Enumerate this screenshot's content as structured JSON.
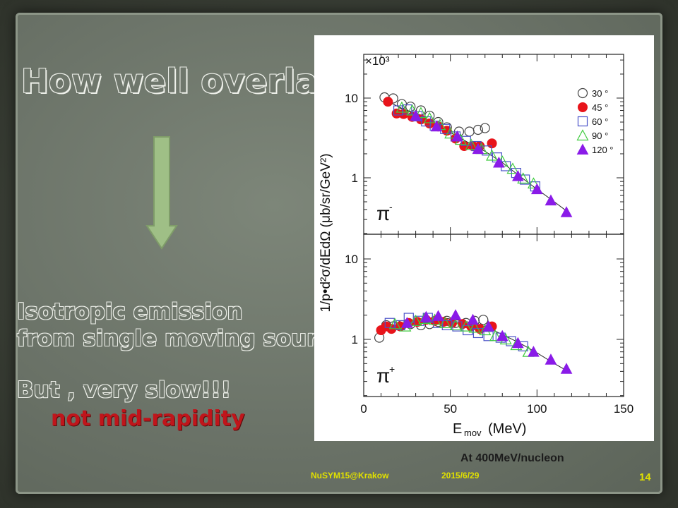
{
  "slide": {
    "title": "How well overlap?",
    "line1": "Isotropic emission",
    "line2": "from single moving source",
    "line3": "But , very slow!!!",
    "line4": "not mid-rapidity",
    "caption": "At 400MeV/nucleon",
    "footer_left": "NuSYM15@Krakow",
    "footer_date": "2015/6/29",
    "page_number": "14",
    "arrow_icon": "down-arrow-icon"
  },
  "colors": {
    "red_text": "#c0151b",
    "footer": "#e0e000",
    "arrow_fill": "#9fbf86",
    "series_30": "#444444",
    "series_45": "#e8141b",
    "series_60": "#4a52c8",
    "series_90": "#3ecb3e",
    "series_120": "#8a1be8"
  },
  "chart_data": {
    "type": "scatter",
    "y_multiplier": "×10³",
    "ylabel": "1/p•d²σ/dEdΩ (μb/sr/GeV²)",
    "xlabel_main": "E",
    "xlabel_sub": "mov",
    "xlabel_unit": "(MeV)",
    "xlim": [
      0,
      150
    ],
    "x_ticks": [
      "0",
      "50",
      "100",
      "150"
    ],
    "y_scale": "log",
    "legend": [
      "30 °",
      "45 °",
      "60 °",
      "90 °",
      "120 °"
    ],
    "legend_position": "top-right",
    "panels": [
      {
        "label": "π",
        "label_sup": "-",
        "ylim": [
          0.12,
          30
        ],
        "y_ticks": [
          {
            "v": 10,
            "t": "10"
          },
          {
            "v": 1,
            "t": "1"
          }
        ],
        "curve": [
          [
            12,
            9.5
          ],
          [
            20,
            7.8
          ],
          [
            30,
            6.2
          ],
          [
            40,
            4.9
          ],
          [
            50,
            3.7
          ],
          [
            60,
            2.8
          ],
          [
            70,
            2.15
          ],
          [
            80,
            1.55
          ],
          [
            90,
            1.05
          ],
          [
            100,
            0.72
          ],
          [
            110,
            0.5
          ],
          [
            118,
            0.37
          ]
        ],
        "series": [
          {
            "name": "30 °",
            "marker": "circle-open",
            "points": [
              [
                12,
                10.2
              ],
              [
                17,
                9.9
              ],
              [
                22,
                8.4
              ],
              [
                27,
                7.8
              ],
              [
                33,
                7.0
              ],
              [
                38,
                6.0
              ],
              [
                43,
                5.0
              ],
              [
                48,
                4.3
              ],
              [
                55,
                3.8
              ],
              [
                61,
                3.8
              ],
              [
                66,
                4.0
              ],
              [
                70,
                4.2
              ]
            ]
          },
          {
            "name": "45 °",
            "marker": "circle-filled",
            "points": [
              [
                14,
                9.0
              ],
              [
                19,
                6.4
              ],
              [
                23,
                6.3
              ],
              [
                28,
                5.8
              ],
              [
                33,
                5.4
              ],
              [
                38,
                4.8
              ],
              [
                43,
                4.4
              ],
              [
                48,
                3.9
              ],
              [
                53,
                3.1
              ],
              [
                58,
                2.5
              ],
              [
                63,
                2.5
              ],
              [
                67,
                2.5
              ],
              [
                74,
                2.7
              ]
            ]
          },
          {
            "name": "60 °",
            "marker": "square-open",
            "points": [
              [
                20,
                7.0
              ],
              [
                25,
                7.2
              ],
              [
                31,
                5.9
              ],
              [
                36,
                5.1
              ],
              [
                41,
                4.5
              ],
              [
                47,
                4.1
              ],
              [
                53,
                3.3
              ],
              [
                59,
                2.9
              ],
              [
                65,
                2.5
              ],
              [
                71,
                2.2
              ],
              [
                77,
                1.8
              ],
              [
                82,
                1.4
              ],
              [
                88,
                1.15
              ],
              [
                93,
                0.95
              ],
              [
                99,
                0.78
              ]
            ]
          },
          {
            "name": "90 °",
            "marker": "triangle-open",
            "points": [
              [
                22,
                7.6
              ],
              [
                28,
                7.0
              ],
              [
                33,
                6.5
              ],
              [
                38,
                5.6
              ],
              [
                44,
                4.6
              ],
              [
                50,
                3.6
              ],
              [
                56,
                3.0
              ],
              [
                62,
                2.6
              ],
              [
                68,
                2.3
              ],
              [
                74,
                1.9
              ],
              [
                80,
                1.6
              ],
              [
                86,
                1.3
              ],
              [
                92,
                0.98
              ],
              [
                98,
                0.85
              ]
            ]
          },
          {
            "name": "120 °",
            "marker": "triangle-filled",
            "points": [
              [
                30,
                6.0
              ],
              [
                42,
                4.4
              ],
              [
                54,
                3.3
              ],
              [
                66,
                2.3
              ],
              [
                78,
                1.55
              ],
              [
                89,
                1.05
              ],
              [
                100,
                0.72
              ],
              [
                108,
                0.52
              ],
              [
                117,
                0.37
              ]
            ]
          }
        ]
      },
      {
        "label": "π",
        "label_sup": "+",
        "ylim": [
          0.12,
          30
        ],
        "y_ticks": [
          {
            "v": 10,
            "t": "10"
          },
          {
            "v": 1,
            "t": "1"
          }
        ],
        "curve": [
          [
            10,
            1.25
          ],
          [
            20,
            1.55
          ],
          [
            30,
            1.78
          ],
          [
            40,
            1.85
          ],
          [
            50,
            1.8
          ],
          [
            60,
            1.65
          ],
          [
            70,
            1.45
          ],
          [
            80,
            1.15
          ],
          [
            90,
            0.9
          ],
          [
            100,
            0.68
          ],
          [
            110,
            0.5
          ],
          [
            118,
            0.4
          ]
        ],
        "series": [
          {
            "name": "30 °",
            "marker": "circle-open",
            "points": [
              [
                9,
                1.05
              ],
              [
                13,
                1.5
              ],
              [
                17,
                1.45
              ],
              [
                22,
                1.5
              ],
              [
                27,
                1.55
              ],
              [
                33,
                1.5
              ],
              [
                38,
                1.55
              ],
              [
                43,
                1.65
              ],
              [
                48,
                1.7
              ],
              [
                53,
                1.6
              ],
              [
                59,
                1.6
              ],
              [
                64,
                1.7
              ],
              [
                69,
                1.75
              ]
            ]
          },
          {
            "name": "45 °",
            "marker": "circle-filled",
            "points": [
              [
                10,
                1.3
              ],
              [
                13,
                1.45
              ],
              [
                16,
                1.35
              ],
              [
                21,
                1.45
              ],
              [
                26,
                1.6
              ],
              [
                31,
                1.65
              ],
              [
                36,
                1.75
              ],
              [
                41,
                1.7
              ],
              [
                46,
                1.65
              ],
              [
                51,
                1.6
              ],
              [
                57,
                1.55
              ],
              [
                62,
                1.45
              ],
              [
                67,
                1.35
              ],
              [
                74,
                1.45
              ]
            ]
          },
          {
            "name": "60 °",
            "marker": "square-open",
            "points": [
              [
                15,
                1.6
              ],
              [
                21,
                1.5
              ],
              [
                26,
                1.85
              ],
              [
                32,
                1.7
              ],
              [
                37,
                1.85
              ],
              [
                43,
                1.6
              ],
              [
                48,
                1.5
              ],
              [
                54,
                1.45
              ],
              [
                60,
                1.3
              ],
              [
                66,
                1.2
              ],
              [
                72,
                1.1
              ],
              [
                79,
                1.05
              ],
              [
                85,
                0.95
              ],
              [
                92,
                0.82
              ]
            ]
          },
          {
            "name": "90 °",
            "marker": "triangle-open",
            "points": [
              [
                18,
                1.55
              ],
              [
                24,
                1.45
              ],
              [
                30,
                1.7
              ],
              [
                35,
                1.8
              ],
              [
                41,
                1.75
              ],
              [
                47,
                1.6
              ],
              [
                53,
                1.5
              ],
              [
                59,
                1.45
              ],
              [
                64,
                1.4
              ],
              [
                70,
                1.3
              ],
              [
                76,
                1.1
              ],
              [
                82,
                1.0
              ],
              [
                88,
                0.85
              ],
              [
                95,
                0.7
              ]
            ]
          },
          {
            "name": "120 °",
            "marker": "triangle-filled",
            "points": [
              [
                25,
                1.6
              ],
              [
                36,
                1.9
              ],
              [
                43,
                1.95
              ],
              [
                53,
                2.0
              ],
              [
                63,
                1.75
              ],
              [
                72,
                1.45
              ],
              [
                80,
                1.1
              ],
              [
                89,
                0.9
              ],
              [
                98,
                0.7
              ],
              [
                108,
                0.56
              ],
              [
                117,
                0.43
              ]
            ]
          }
        ]
      }
    ]
  }
}
